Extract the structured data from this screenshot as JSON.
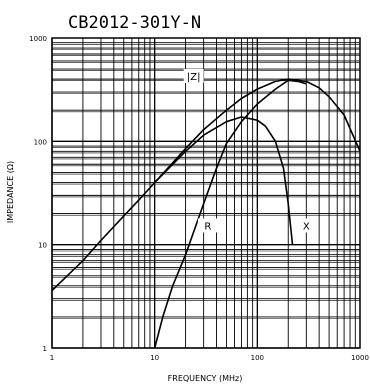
{
  "chart_data": {
    "type": "line",
    "title": "CB2012-301Y-N",
    "xlabel": "FREQUENCY (MHz)",
    "ylabel": "IMPEDANCE (Ω)",
    "x_scale": "log",
    "y_scale": "log",
    "xlim": [
      1,
      1000
    ],
    "ylim": [
      1,
      1000
    ],
    "grid": true,
    "x_ticks": [
      "1",
      "10",
      "100",
      "1000"
    ],
    "y_ticks": [
      "1",
      "10",
      "100",
      "1000"
    ],
    "series": [
      {
        "name": "|Z|",
        "x": [
          1,
          2,
          3,
          5,
          7,
          10,
          15,
          20,
          30,
          50,
          70,
          100,
          150,
          200,
          300,
          400,
          500,
          700,
          1000
        ],
        "y": [
          3.6,
          7,
          11,
          19,
          27,
          40,
          62,
          85,
          130,
          200,
          260,
          320,
          380,
          400,
          380,
          330,
          270,
          180,
          80
        ]
      },
      {
        "name": "R",
        "x": [
          10,
          12,
          15,
          20,
          30,
          40,
          50,
          70,
          100,
          150,
          200,
          250,
          300
        ],
        "y": [
          1,
          2,
          4,
          8,
          25,
          55,
          95,
          155,
          230,
          320,
          390,
          380,
          360
        ]
      },
      {
        "name": "X",
        "x": [
          10,
          15,
          20,
          30,
          50,
          70,
          100,
          120,
          150,
          180,
          200,
          220
        ],
        "y": [
          40,
          60,
          80,
          115,
          155,
          172,
          160,
          140,
          100,
          55,
          25,
          10
        ]
      }
    ]
  }
}
